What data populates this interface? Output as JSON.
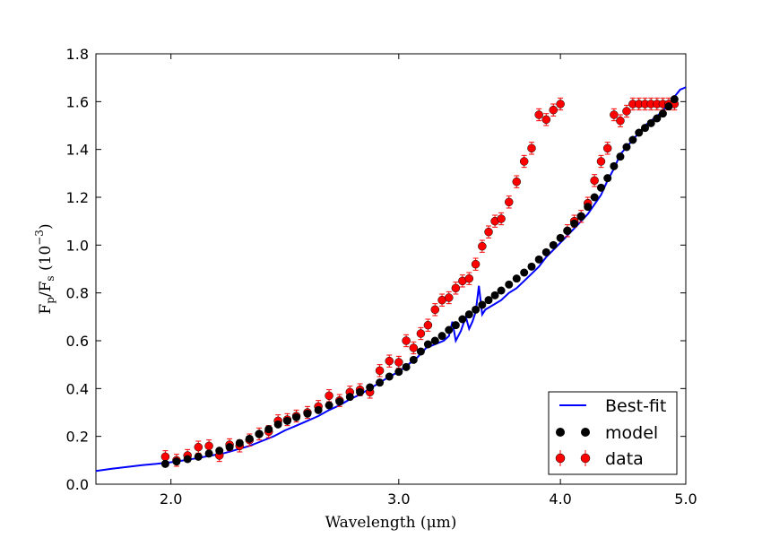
{
  "chart_data": {
    "type": "scatter",
    "title": "",
    "xlabel": "Wavelength  (μm)",
    "ylabel": "F",
    "ylabel_parts": {
      "f1": "F",
      "sub1": "p",
      "slash": "/F",
      "sub2": "s",
      "open": " (10",
      "sup": "−3",
      "close": ")"
    },
    "x_scale": "log",
    "xlim": [
      1.75,
      5.0
    ],
    "ylim": [
      0.0,
      1.8
    ],
    "x_ticks": [
      2.0,
      3.0,
      4.0,
      5.0
    ],
    "x_tick_labels": [
      "2.0",
      "3.0",
      "4.0",
      "5.0"
    ],
    "y_ticks": [
      0.0,
      0.2,
      0.4,
      0.6,
      0.8,
      1.0,
      1.2,
      1.4,
      1.6,
      1.8
    ],
    "y_tick_labels": [
      "0.0",
      "0.2",
      "0.4",
      "0.6",
      "0.8",
      "1.0",
      "1.2",
      "1.4",
      "1.6",
      "1.8"
    ],
    "grid": false,
    "legend_position": "bottom-right",
    "colors": {
      "best_fit": "#0000ff",
      "model": "#000000",
      "data": "#ff0000",
      "errorbar": "#ff0000"
    },
    "series": [
      {
        "name": "Best-fit",
        "kind": "line",
        "x": [
          1.75,
          1.8,
          1.85,
          1.9,
          1.95,
          2.0,
          2.05,
          2.1,
          2.15,
          2.2,
          2.25,
          2.3,
          2.35,
          2.4,
          2.45,
          2.5,
          2.55,
          2.6,
          2.65,
          2.7,
          2.75,
          2.8,
          2.85,
          2.9,
          2.95,
          3.0,
          3.05,
          3.1,
          3.15,
          3.2,
          3.25,
          3.28,
          3.3,
          3.32,
          3.35,
          3.38,
          3.4,
          3.42,
          3.44,
          3.46,
          3.48,
          3.5,
          3.55,
          3.6,
          3.65,
          3.7,
          3.75,
          3.8,
          3.85,
          3.9,
          3.95,
          4.0,
          4.05,
          4.1,
          4.15,
          4.2,
          4.25,
          4.3,
          4.35,
          4.4,
          4.45,
          4.5,
          4.55,
          4.6,
          4.65,
          4.7,
          4.75,
          4.8,
          4.85,
          4.9,
          4.95,
          5.0
        ],
        "y": [
          0.055,
          0.065,
          0.072,
          0.08,
          0.085,
          0.092,
          0.1,
          0.11,
          0.12,
          0.13,
          0.145,
          0.16,
          0.18,
          0.2,
          0.225,
          0.245,
          0.265,
          0.285,
          0.31,
          0.33,
          0.355,
          0.375,
          0.4,
          0.425,
          0.45,
          0.47,
          0.5,
          0.53,
          0.57,
          0.585,
          0.6,
          0.62,
          0.68,
          0.6,
          0.64,
          0.7,
          0.65,
          0.68,
          0.72,
          0.83,
          0.71,
          0.73,
          0.75,
          0.77,
          0.8,
          0.82,
          0.85,
          0.88,
          0.91,
          0.95,
          0.98,
          1.01,
          1.04,
          1.07,
          1.1,
          1.13,
          1.17,
          1.21,
          1.27,
          1.32,
          1.38,
          1.41,
          1.44,
          1.47,
          1.5,
          1.52,
          1.54,
          1.56,
          1.59,
          1.62,
          1.65,
          1.66
        ]
      },
      {
        "name": "model",
        "kind": "points",
        "x": [
          1.98,
          2.02,
          2.06,
          2.1,
          2.14,
          2.18,
          2.22,
          2.26,
          2.3,
          2.34,
          2.38,
          2.42,
          2.46,
          2.5,
          2.55,
          2.6,
          2.65,
          2.7,
          2.75,
          2.8,
          2.85,
          2.9,
          2.95,
          3.0,
          3.04,
          3.08,
          3.12,
          3.16,
          3.2,
          3.24,
          3.28,
          3.32,
          3.36,
          3.4,
          3.44,
          3.48,
          3.52,
          3.56,
          3.6,
          3.65,
          3.7,
          3.75,
          3.8,
          3.85,
          3.9,
          3.95,
          4.0,
          4.05,
          4.1,
          4.15,
          4.2,
          4.25,
          4.3,
          4.35,
          4.4,
          4.45,
          4.5,
          4.55,
          4.6,
          4.65,
          4.7,
          4.75,
          4.8,
          4.85,
          4.9
        ],
        "y": [
          0.085,
          0.095,
          0.105,
          0.115,
          0.128,
          0.14,
          0.155,
          0.172,
          0.19,
          0.21,
          0.23,
          0.25,
          0.265,
          0.28,
          0.295,
          0.31,
          0.33,
          0.345,
          0.365,
          0.385,
          0.405,
          0.425,
          0.45,
          0.47,
          0.49,
          0.52,
          0.555,
          0.585,
          0.6,
          0.62,
          0.645,
          0.665,
          0.69,
          0.71,
          0.73,
          0.75,
          0.77,
          0.79,
          0.81,
          0.835,
          0.86,
          0.885,
          0.91,
          0.94,
          0.97,
          1.0,
          1.03,
          1.06,
          1.09,
          1.12,
          1.16,
          1.2,
          1.24,
          1.28,
          1.33,
          1.37,
          1.41,
          1.44,
          1.47,
          1.49,
          1.51,
          1.53,
          1.55,
          1.58,
          1.61
        ]
      },
      {
        "name": "data",
        "kind": "errorbar",
        "x": [
          1.98,
          2.02,
          2.06,
          2.1,
          2.14,
          2.18,
          2.22,
          2.26,
          2.3,
          2.34,
          2.38,
          2.42,
          2.46,
          2.5,
          2.55,
          2.6,
          2.65,
          2.7,
          2.75,
          2.8,
          2.85,
          2.9,
          2.95,
          3.0,
          3.04,
          3.08,
          3.12,
          3.16,
          3.2,
          3.24,
          3.28,
          3.32,
          3.36,
          3.4,
          3.44,
          3.48,
          3.52,
          3.56,
          3.6,
          3.65,
          3.7,
          3.75,
          3.8,
          3.85,
          3.9,
          3.95,
          4.0,
          4.05,
          4.1,
          4.15,
          4.2,
          4.25,
          4.3,
          4.35,
          4.4,
          4.45,
          4.5,
          4.55,
          4.6,
          4.65,
          4.7,
          4.75,
          4.8,
          4.85,
          4.9
        ],
        "y": [
          0.115,
          0.1,
          0.12,
          0.155,
          0.16,
          0.12,
          0.165,
          0.16,
          0.185,
          0.21,
          0.22,
          0.265,
          0.27,
          0.285,
          0.3,
          0.325,
          0.37,
          0.35,
          0.385,
          0.395,
          0.385,
          0.475,
          0.515,
          0.51,
          0.6,
          0.57,
          0.63,
          0.665,
          0.73,
          0.77,
          0.78,
          0.82,
          0.85,
          0.86,
          0.92,
          0.995,
          1.055,
          1.1,
          1.11,
          1.18,
          1.265,
          1.35,
          1.405,
          1.545,
          1.525,
          1.565,
          1.59,
          1.06,
          1.1,
          1.12,
          1.175,
          1.27,
          1.35,
          1.405,
          1.545,
          1.52,
          1.56,
          1.59,
          1.59,
          1.59,
          1.59,
          1.59,
          1.59,
          1.59,
          1.59
        ],
        "yerr": 0.025
      }
    ]
  }
}
